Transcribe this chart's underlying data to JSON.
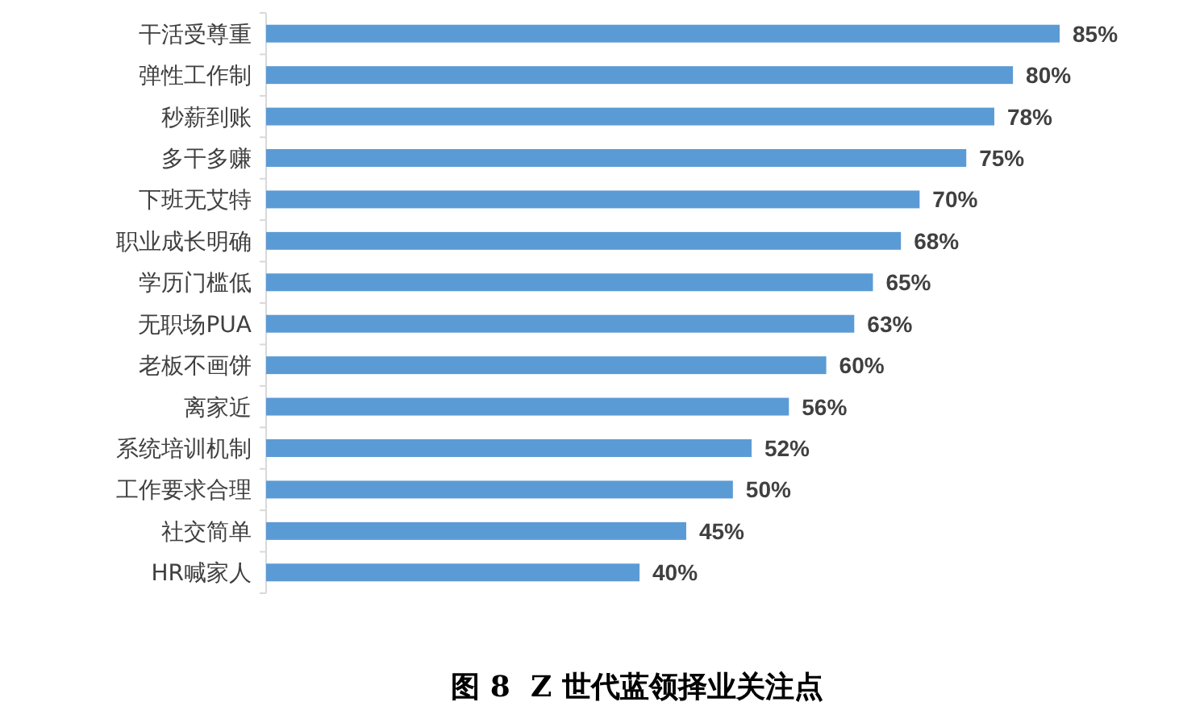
{
  "chart_data": {
    "type": "bar",
    "orientation": "horizontal",
    "title": "图 8  Z 世代蓝领择业关注点",
    "categories": [
      "干活受尊重",
      "弹性工作制",
      "秒薪到账",
      "多干多赚",
      "下班无艾特",
      "职业成长明确",
      "学历门槛低",
      "无职场PUA",
      "老板不画饼",
      "离家近",
      "系统培训机制",
      "工作要求合理",
      "社交简单",
      "HR喊家人"
    ],
    "values": [
      85,
      80,
      78,
      75,
      70,
      68,
      65,
      63,
      60,
      56,
      52,
      50,
      45,
      40
    ],
    "value_labels": [
      "85%",
      "80%",
      "78%",
      "75%",
      "70%",
      "68%",
      "65%",
      "63%",
      "60%",
      "56%",
      "52%",
      "50%",
      "45%",
      "40%"
    ],
    "color": "#5b9bd5",
    "tick_labels": "y"
  }
}
